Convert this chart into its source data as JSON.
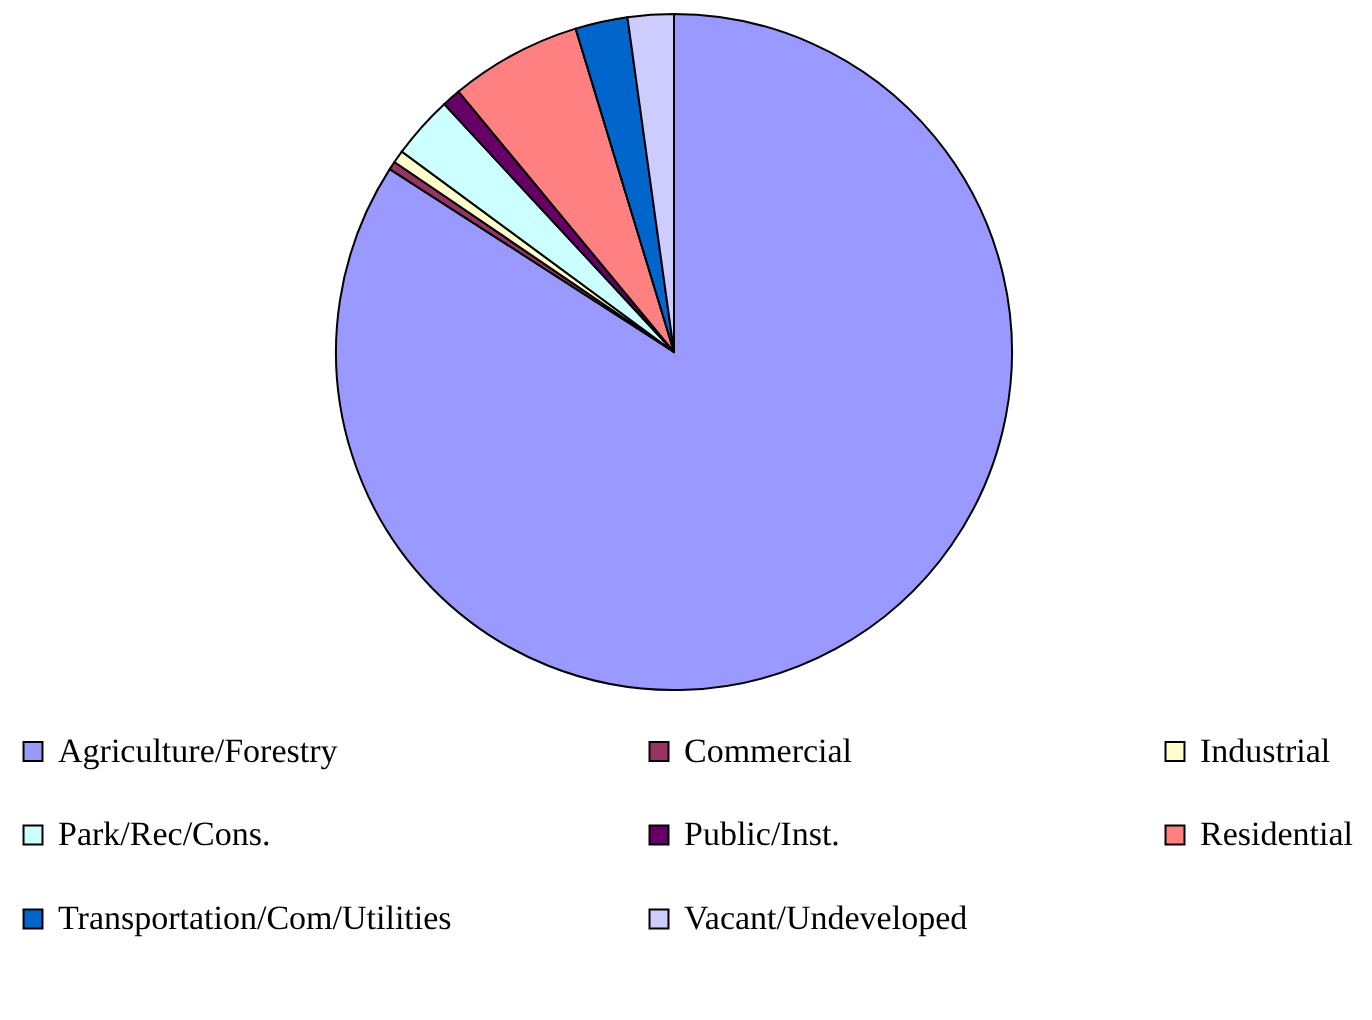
{
  "chart_data": {
    "type": "pie",
    "categories": [
      "Agriculture/Forestry",
      "Commercial",
      "Industrial",
      "Park/Rec/Cons.",
      "Public/Inst.",
      "Residential",
      "Transportation/Com/Utilities",
      "Vacant/Undeveloped"
    ],
    "values": [
      84.1,
      0.4,
      0.6,
      3.0,
      0.9,
      6.3,
      2.5,
      2.2
    ],
    "colors": [
      "#9999ff",
      "#993366",
      "#ffffcc",
      "#ccffff",
      "#660066",
      "#ff8080",
      "#0066cc",
      "#ccccff"
    ],
    "legend": "bottom"
  }
}
